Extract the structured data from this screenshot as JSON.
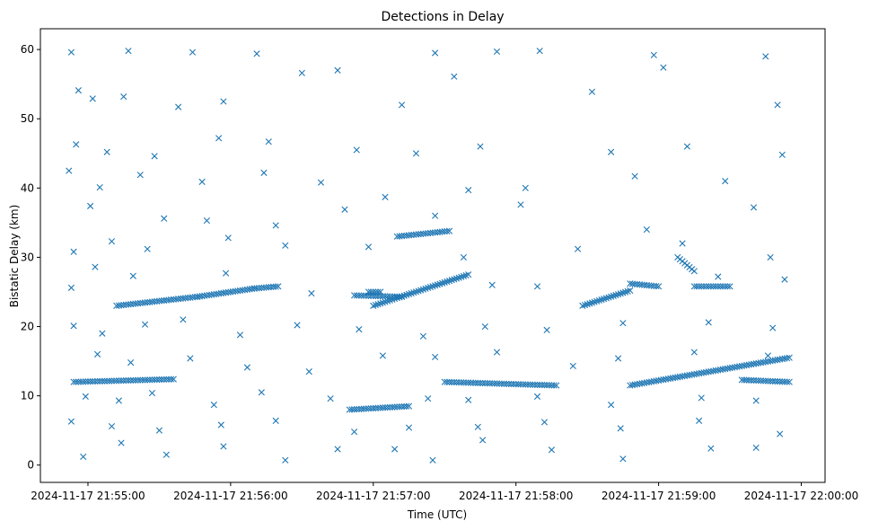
{
  "chart_data": {
    "type": "scatter",
    "title": "Detections in Delay",
    "xlabel": "Time (UTC)",
    "ylabel": "Bistatic Delay (km)",
    "marker": "x",
    "grid": false,
    "legend": "none",
    "color": "#1f77b4",
    "xlim_seconds_from_tick0": [
      -20,
      310
    ],
    "ylim": [
      -2.5,
      63
    ],
    "x_ticks": [
      "2024-11-17 21:55:00",
      "2024-11-17 21:56:00",
      "2024-11-17 21:57:00",
      "2024-11-17 21:58:00",
      "2024-11-17 21:59:00",
      "2024-11-17 22:00:00"
    ],
    "y_ticks": [
      "0",
      "10",
      "20",
      "30",
      "40",
      "50",
      "60"
    ],
    "tracks": [
      {
        "x_start": "21:54:54",
        "x_end": "21:55:36",
        "y_start": 12.0,
        "y_end": 12.4
      },
      {
        "x_start": "21:55:12",
        "x_end": "21:55:46",
        "y_start": 23.0,
        "y_end": 24.3
      },
      {
        "x_start": "21:55:46",
        "x_end": "21:56:10",
        "y_start": 24.3,
        "y_end": 25.5
      },
      {
        "x_start": "21:56:10",
        "x_end": "21:56:20",
        "y_start": 25.5,
        "y_end": 25.8
      },
      {
        "x_start": "21:56:58",
        "x_end": "21:57:03",
        "y_start": 25.0,
        "y_end": 25.0
      },
      {
        "x_start": "21:56:50",
        "x_end": "21:57:15",
        "y_start": 8.0,
        "y_end": 8.5
      },
      {
        "x_start": "21:56:52",
        "x_end": "21:57:12",
        "y_start": 24.5,
        "y_end": 24.3
      },
      {
        "x_start": "21:57:00",
        "x_end": "21:57:40",
        "y_start": 23.0,
        "y_end": 27.5
      },
      {
        "x_start": "21:57:10",
        "x_end": "21:57:32",
        "y_start": 33.0,
        "y_end": 33.8
      },
      {
        "x_start": "21:57:30",
        "x_end": "21:58:17",
        "y_start": 12.0,
        "y_end": 11.5
      },
      {
        "x_start": "21:58:28",
        "x_end": "21:58:48",
        "y_start": 23.0,
        "y_end": 25.2
      },
      {
        "x_start": "21:58:48",
        "x_end": "21:59:00",
        "y_start": 26.2,
        "y_end": 25.8
      },
      {
        "x_start": "21:58:48",
        "x_end": "21:59:55",
        "y_start": 11.5,
        "y_end": 15.5
      },
      {
        "x_start": "21:59:08",
        "x_end": "21:59:15",
        "y_start": 30.0,
        "y_end": 28.0
      },
      {
        "x_start": "21:59:15",
        "x_end": "21:59:30",
        "y_start": 25.8,
        "y_end": 25.8
      },
      {
        "x_start": "21:59:35",
        "x_end": "21:59:55",
        "y_start": 12.3,
        "y_end": 12.0
      }
    ],
    "scattered_points": [
      {
        "x": "21:54:53",
        "y": 59.6
      },
      {
        "x": "21:55:17",
        "y": 59.8
      },
      {
        "x": "21:55:44",
        "y": 59.6
      },
      {
        "x": "21:56:11",
        "y": 59.4
      },
      {
        "x": "21:57:26",
        "y": 59.5
      },
      {
        "x": "21:57:52",
        "y": 59.7
      },
      {
        "x": "21:58:10",
        "y": 59.8
      },
      {
        "x": "21:58:58",
        "y": 59.2
      },
      {
        "x": "21:59:45",
        "y": 59.0
      },
      {
        "x": "21:54:56",
        "y": 54.1
      },
      {
        "x": "21:55:02",
        "y": 52.9
      },
      {
        "x": "21:55:15",
        "y": 53.2
      },
      {
        "x": "21:55:38",
        "y": 51.7
      },
      {
        "x": "21:55:57",
        "y": 52.5
      },
      {
        "x": "21:56:30",
        "y": 56.6
      },
      {
        "x": "21:56:45",
        "y": 57.0
      },
      {
        "x": "21:57:12",
        "y": 52.0
      },
      {
        "x": "21:57:34",
        "y": 56.1
      },
      {
        "x": "21:58:32",
        "y": 53.9
      },
      {
        "x": "21:59:02",
        "y": 57.4
      },
      {
        "x": "21:59:50",
        "y": 52.0
      },
      {
        "x": "21:54:55",
        "y": 46.3
      },
      {
        "x": "21:55:08",
        "y": 45.2
      },
      {
        "x": "21:55:28",
        "y": 44.6
      },
      {
        "x": "21:55:55",
        "y": 47.2
      },
      {
        "x": "21:56:16",
        "y": 46.7
      },
      {
        "x": "21:56:53",
        "y": 45.5
      },
      {
        "x": "21:57:18",
        "y": 45.0
      },
      {
        "x": "21:57:45",
        "y": 46.0
      },
      {
        "x": "21:58:40",
        "y": 45.2
      },
      {
        "x": "21:59:12",
        "y": 46.0
      },
      {
        "x": "21:59:52",
        "y": 44.8
      },
      {
        "x": "21:54:52",
        "y": 42.5
      },
      {
        "x": "21:55:05",
        "y": 40.1
      },
      {
        "x": "21:55:22",
        "y": 41.9
      },
      {
        "x": "21:55:48",
        "y": 40.9
      },
      {
        "x": "21:56:14",
        "y": 42.2
      },
      {
        "x": "21:56:38",
        "y": 40.8
      },
      {
        "x": "21:57:05",
        "y": 38.7
      },
      {
        "x": "21:57:40",
        "y": 39.7
      },
      {
        "x": "21:58:04",
        "y": 40.0
      },
      {
        "x": "21:58:50",
        "y": 41.7
      },
      {
        "x": "21:59:28",
        "y": 41.0
      },
      {
        "x": "21:55:01",
        "y": 37.4
      },
      {
        "x": "21:55:32",
        "y": 35.6
      },
      {
        "x": "21:55:50",
        "y": 35.3
      },
      {
        "x": "21:56:19",
        "y": 34.6
      },
      {
        "x": "21:56:48",
        "y": 36.9
      },
      {
        "x": "21:57:26",
        "y": 36.0
      },
      {
        "x": "21:58:02",
        "y": 37.6
      },
      {
        "x": "21:58:55",
        "y": 34.0
      },
      {
        "x": "21:59:40",
        "y": 37.2
      },
      {
        "x": "21:54:54",
        "y": 30.8
      },
      {
        "x": "21:55:10",
        "y": 32.3
      },
      {
        "x": "21:55:25",
        "y": 31.2
      },
      {
        "x": "21:55:59",
        "y": 32.8
      },
      {
        "x": "21:56:23",
        "y": 31.7
      },
      {
        "x": "21:56:58",
        "y": 31.5
      },
      {
        "x": "21:57:38",
        "y": 30.0
      },
      {
        "x": "21:58:26",
        "y": 31.2
      },
      {
        "x": "21:59:10",
        "y": 32.0
      },
      {
        "x": "21:59:47",
        "y": 30.0
      },
      {
        "x": "21:54:53",
        "y": 25.6
      },
      {
        "x": "21:55:03",
        "y": 28.6
      },
      {
        "x": "21:55:19",
        "y": 27.3
      },
      {
        "x": "21:55:58",
        "y": 27.7
      },
      {
        "x": "21:56:34",
        "y": 24.8
      },
      {
        "x": "21:57:50",
        "y": 26.0
      },
      {
        "x": "21:58:09",
        "y": 25.8
      },
      {
        "x": "21:59:25",
        "y": 27.2
      },
      {
        "x": "21:59:53",
        "y": 26.8
      },
      {
        "x": "21:54:54",
        "y": 20.1
      },
      {
        "x": "21:55:06",
        "y": 19.0
      },
      {
        "x": "21:55:24",
        "y": 20.3
      },
      {
        "x": "21:55:40",
        "y": 21.0
      },
      {
        "x": "21:56:04",
        "y": 18.8
      },
      {
        "x": "21:56:28",
        "y": 20.2
      },
      {
        "x": "21:56:54",
        "y": 19.6
      },
      {
        "x": "21:57:21",
        "y": 18.6
      },
      {
        "x": "21:57:47",
        "y": 20.0
      },
      {
        "x": "21:58:13",
        "y": 19.5
      },
      {
        "x": "21:58:45",
        "y": 20.5
      },
      {
        "x": "21:59:21",
        "y": 20.6
      },
      {
        "x": "21:59:48",
        "y": 19.8
      },
      {
        "x": "21:55:04",
        "y": 16.0
      },
      {
        "x": "21:55:18",
        "y": 14.8
      },
      {
        "x": "21:55:43",
        "y": 15.4
      },
      {
        "x": "21:56:07",
        "y": 14.1
      },
      {
        "x": "21:56:33",
        "y": 13.5
      },
      {
        "x": "21:57:04",
        "y": 15.8
      },
      {
        "x": "21:57:26",
        "y": 15.6
      },
      {
        "x": "21:57:52",
        "y": 16.3
      },
      {
        "x": "21:58:24",
        "y": 14.3
      },
      {
        "x": "21:58:43",
        "y": 15.4
      },
      {
        "x": "21:59:15",
        "y": 16.3
      },
      {
        "x": "21:59:46",
        "y": 15.8
      },
      {
        "x": "21:54:59",
        "y": 9.9
      },
      {
        "x": "21:55:13",
        "y": 9.3
      },
      {
        "x": "21:55:27",
        "y": 10.4
      },
      {
        "x": "21:55:53",
        "y": 8.7
      },
      {
        "x": "21:56:13",
        "y": 10.5
      },
      {
        "x": "21:56:42",
        "y": 9.6
      },
      {
        "x": "21:57:23",
        "y": 9.6
      },
      {
        "x": "21:57:40",
        "y": 9.4
      },
      {
        "x": "21:58:09",
        "y": 9.9
      },
      {
        "x": "21:58:40",
        "y": 8.7
      },
      {
        "x": "21:59:18",
        "y": 9.7
      },
      {
        "x": "21:59:41",
        "y": 9.3
      },
      {
        "x": "21:54:53",
        "y": 6.3
      },
      {
        "x": "21:55:10",
        "y": 5.6
      },
      {
        "x": "21:55:30",
        "y": 5.0
      },
      {
        "x": "21:55:56",
        "y": 5.8
      },
      {
        "x": "21:56:19",
        "y": 6.4
      },
      {
        "x": "21:56:52",
        "y": 4.8
      },
      {
        "x": "21:57:15",
        "y": 5.4
      },
      {
        "x": "21:57:44",
        "y": 5.5
      },
      {
        "x": "21:58:12",
        "y": 6.2
      },
      {
        "x": "21:58:44",
        "y": 5.3
      },
      {
        "x": "21:59:17",
        "y": 6.4
      },
      {
        "x": "21:59:51",
        "y": 4.5
      },
      {
        "x": "21:54:58",
        "y": 1.2
      },
      {
        "x": "21:55:14",
        "y": 3.2
      },
      {
        "x": "21:55:33",
        "y": 1.5
      },
      {
        "x": "21:55:57",
        "y": 2.7
      },
      {
        "x": "21:56:23",
        "y": 0.7
      },
      {
        "x": "21:56:45",
        "y": 2.3
      },
      {
        "x": "21:57:09",
        "y": 2.3
      },
      {
        "x": "21:57:25",
        "y": 0.7
      },
      {
        "x": "21:57:46",
        "y": 3.6
      },
      {
        "x": "21:58:15",
        "y": 2.2
      },
      {
        "x": "21:58:45",
        "y": 0.9
      },
      {
        "x": "21:59:22",
        "y": 2.4
      },
      {
        "x": "21:59:41",
        "y": 2.5
      }
    ]
  }
}
